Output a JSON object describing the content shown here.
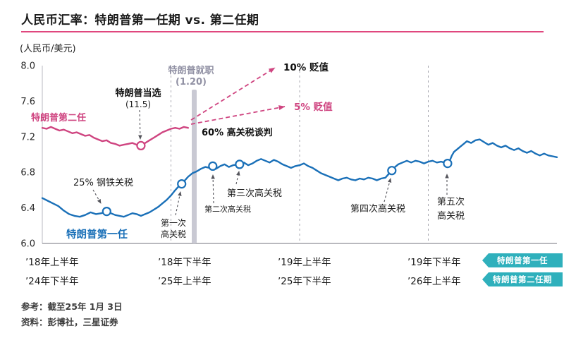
{
  "header": {
    "title": "人民币汇率：特朗普第一任期 vs. 第二任期"
  },
  "footer": {
    "reference": "参考：截至25年 1月 3日",
    "source": "资料：彭博社，三星证券"
  },
  "theme": {
    "line_blue": "#1a70b8",
    "line_pink": "#cf4480",
    "rule_pink": "#e0477e",
    "badge_teal": "#2fb0bc",
    "bar_gray": "#c9c9d3",
    "muted_annotation": "#9191a4"
  },
  "chart_data": {
    "type": "line",
    "title": "人民币汇率：特朗普第一任期 vs. 第二任期",
    "ylabel_display": "(人民币/美元)",
    "ylabel": "人民币/美元",
    "ylim": [
      6.0,
      8.0
    ],
    "y_ticks": [
      8.0,
      7.6,
      7.2,
      6.8,
      6.4,
      6.0
    ],
    "x_months_span": 24,
    "gridline_months": [
      6,
      12,
      18
    ],
    "x_ticks_top": [
      "’18年上半年",
      "’18年下半年",
      "’19年上半年",
      "’19年下半年"
    ],
    "x_ticks_bottom": [
      "’24年下半年",
      "’25年上半年",
      "’25年下半年",
      "’26年上半年"
    ],
    "legend": [
      "特朗普第一任",
      "特朗普第二任期"
    ],
    "legend_position": "bottom-right",
    "series": [
      {
        "name": "特朗普第一任 (2018-2019)",
        "color": "#1a70b8",
        "points": [
          [
            0,
            6.51
          ],
          [
            0.25,
            6.48
          ],
          [
            0.5,
            6.45
          ],
          [
            0.75,
            6.42
          ],
          [
            1,
            6.37
          ],
          [
            1.25,
            6.33
          ],
          [
            1.5,
            6.31
          ],
          [
            1.75,
            6.3
          ],
          [
            2,
            6.32
          ],
          [
            2.25,
            6.35
          ],
          [
            2.5,
            6.33
          ],
          [
            2.75,
            6.34
          ],
          [
            3,
            6.36
          ],
          [
            3.2,
            6.34
          ],
          [
            3.4,
            6.32
          ],
          [
            3.6,
            6.31
          ],
          [
            3.8,
            6.3
          ],
          [
            4,
            6.32
          ],
          [
            4.2,
            6.34
          ],
          [
            4.4,
            6.33
          ],
          [
            4.6,
            6.31
          ],
          [
            4.8,
            6.33
          ],
          [
            5,
            6.35
          ],
          [
            5.2,
            6.38
          ],
          [
            5.4,
            6.41
          ],
          [
            5.6,
            6.45
          ],
          [
            5.8,
            6.49
          ],
          [
            6,
            6.54
          ],
          [
            6.2,
            6.6
          ],
          [
            6.35,
            6.64
          ],
          [
            6.5,
            6.67
          ],
          [
            6.65,
            6.71
          ],
          [
            6.8,
            6.75
          ],
          [
            7,
            6.79
          ],
          [
            7.2,
            6.81
          ],
          [
            7.4,
            6.84
          ],
          [
            7.6,
            6.86
          ],
          [
            7.8,
            6.85
          ],
          [
            7.95,
            6.87
          ],
          [
            8.1,
            6.84
          ],
          [
            8.3,
            6.87
          ],
          [
            8.5,
            6.89
          ],
          [
            8.7,
            6.86
          ],
          [
            8.9,
            6.88
          ],
          [
            9.2,
            6.89
          ],
          [
            9.4,
            6.91
          ],
          [
            9.6,
            6.88
          ],
          [
            9.8,
            6.9
          ],
          [
            10,
            6.93
          ],
          [
            10.2,
            6.95
          ],
          [
            10.4,
            6.93
          ],
          [
            10.6,
            6.91
          ],
          [
            10.8,
            6.94
          ],
          [
            11,
            6.92
          ],
          [
            11.2,
            6.89
          ],
          [
            11.4,
            6.87
          ],
          [
            11.6,
            6.85
          ],
          [
            11.8,
            6.87
          ],
          [
            12,
            6.88
          ],
          [
            12.2,
            6.9
          ],
          [
            12.4,
            6.87
          ],
          [
            12.6,
            6.85
          ],
          [
            12.8,
            6.82
          ],
          [
            13,
            6.79
          ],
          [
            13.2,
            6.77
          ],
          [
            13.4,
            6.75
          ],
          [
            13.6,
            6.73
          ],
          [
            13.8,
            6.71
          ],
          [
            14,
            6.73
          ],
          [
            14.2,
            6.74
          ],
          [
            14.4,
            6.72
          ],
          [
            14.6,
            6.71
          ],
          [
            14.8,
            6.73
          ],
          [
            15,
            6.72
          ],
          [
            15.2,
            6.74
          ],
          [
            15.4,
            6.73
          ],
          [
            15.6,
            6.71
          ],
          [
            15.8,
            6.73
          ],
          [
            16,
            6.74
          ],
          [
            16.15,
            6.78
          ],
          [
            16.3,
            6.82
          ],
          [
            16.45,
            6.86
          ],
          [
            16.6,
            6.89
          ],
          [
            16.8,
            6.91
          ],
          [
            17,
            6.93
          ],
          [
            17.2,
            6.91
          ],
          [
            17.4,
            6.93
          ],
          [
            17.6,
            6.92
          ],
          [
            17.8,
            6.9
          ],
          [
            18,
            6.92
          ],
          [
            18.2,
            6.93
          ],
          [
            18.4,
            6.91
          ],
          [
            18.6,
            6.92
          ],
          [
            18.75,
            6.91
          ],
          [
            18.9,
            6.9
          ],
          [
            19,
            6.93
          ],
          [
            19.1,
            6.99
          ],
          [
            19.2,
            7.03
          ],
          [
            19.35,
            7.06
          ],
          [
            19.5,
            7.09
          ],
          [
            19.65,
            7.12
          ],
          [
            19.8,
            7.15
          ],
          [
            20,
            7.13
          ],
          [
            20.2,
            7.16
          ],
          [
            20.4,
            7.17
          ],
          [
            20.6,
            7.14
          ],
          [
            20.8,
            7.11
          ],
          [
            21,
            7.13
          ],
          [
            21.2,
            7.1
          ],
          [
            21.4,
            7.08
          ],
          [
            21.6,
            7.1
          ],
          [
            21.8,
            7.07
          ],
          [
            22,
            7.05
          ],
          [
            22.2,
            7.07
          ],
          [
            22.4,
            7.04
          ],
          [
            22.6,
            7.02
          ],
          [
            22.8,
            7.04
          ],
          [
            23,
            7.01
          ],
          [
            23.2,
            6.99
          ],
          [
            23.4,
            7.01
          ],
          [
            23.6,
            6.99
          ],
          [
            23.8,
            6.98
          ],
          [
            24,
            6.97
          ]
        ]
      },
      {
        "name": "特朗普第二任期 (2024-2025)",
        "color": "#cf4480",
        "points": [
          [
            0,
            7.3
          ],
          [
            0.2,
            7.29
          ],
          [
            0.4,
            7.31
          ],
          [
            0.6,
            7.29
          ],
          [
            0.8,
            7.27
          ],
          [
            1,
            7.28
          ],
          [
            1.2,
            7.26
          ],
          [
            1.4,
            7.24
          ],
          [
            1.6,
            7.25
          ],
          [
            1.8,
            7.23
          ],
          [
            2,
            7.21
          ],
          [
            2.2,
            7.22
          ],
          [
            2.4,
            7.19
          ],
          [
            2.6,
            7.17
          ],
          [
            2.8,
            7.15
          ],
          [
            3,
            7.16
          ],
          [
            3.2,
            7.13
          ],
          [
            3.4,
            7.12
          ],
          [
            3.6,
            7.1
          ],
          [
            3.8,
            7.11
          ],
          [
            4,
            7.12
          ],
          [
            4.2,
            7.13
          ],
          [
            4.4,
            7.11
          ],
          [
            4.6,
            7.1
          ],
          [
            4.8,
            7.13
          ],
          [
            5,
            7.16
          ],
          [
            5.2,
            7.19
          ],
          [
            5.4,
            7.22
          ],
          [
            5.6,
            7.25
          ],
          [
            5.8,
            7.27
          ],
          [
            6,
            7.29
          ],
          [
            6.2,
            7.3
          ],
          [
            6.4,
            7.29
          ],
          [
            6.6,
            7.31
          ],
          [
            6.8,
            7.3
          ]
        ]
      }
    ],
    "markers": [
      {
        "id": "steel-tariff",
        "series": 0,
        "m": 3.0,
        "v": 6.36,
        "label": "25% 钢铁关税"
      },
      {
        "id": "tariff-1",
        "series": 0,
        "m": 6.5,
        "v": 6.67,
        "label": "第一次高关税"
      },
      {
        "id": "tariff-2",
        "series": 0,
        "m": 7.95,
        "v": 6.87,
        "label": "第二次高关税"
      },
      {
        "id": "tariff-3",
        "series": 0,
        "m": 9.2,
        "v": 6.89,
        "label": "第三次高关税"
      },
      {
        "id": "tariff-4",
        "series": 0,
        "m": 16.3,
        "v": 6.82,
        "label": "第四次高关税"
      },
      {
        "id": "tariff-5",
        "series": 0,
        "m": 18.9,
        "v": 6.9,
        "label": "第五次高关税"
      },
      {
        "id": "trump-elected",
        "series": 1,
        "m": 4.6,
        "v": 7.1,
        "label": "特朗普当选 (11.5)"
      }
    ],
    "annotations": {
      "election_l1": "特朗普当选",
      "election_l2": "(11.5)",
      "inauguration_l1": "特朗普就职",
      "inauguration_l2": "(1.20)",
      "dep10": "10% 贬值",
      "dep5": "5% 贬值",
      "tariff60": "60% 高关税谈判",
      "steel": "25% 钢铁关税",
      "term1_label": "特朗普第一任",
      "term2_label": "特朗普第二任",
      "tariff1_l1": "第一次",
      "tariff1_l2": "高关税",
      "tariff2": "第二次高关税",
      "tariff3": "第三次高关税",
      "tariff4": "第四次高关税",
      "tariff5_l1": "第五次",
      "tariff5_l2": "高关税"
    }
  }
}
